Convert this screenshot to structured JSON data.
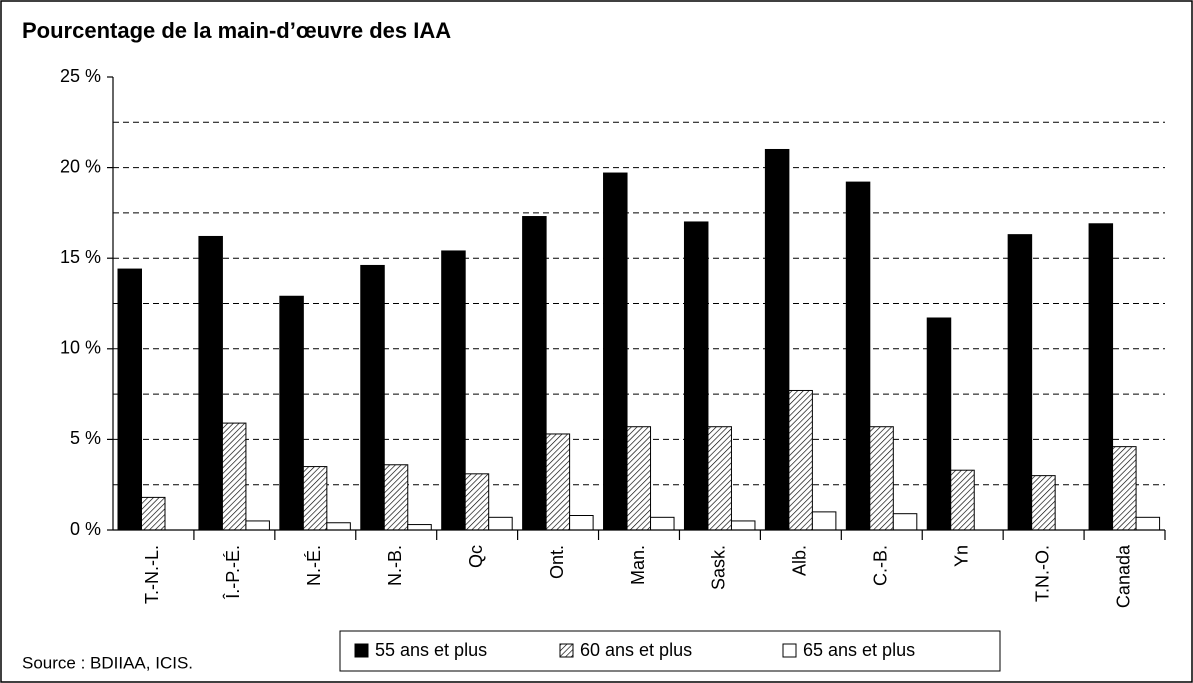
{
  "chart_data": {
    "type": "bar",
    "title": "Pourcentage de la main-d’œuvre des IAA",
    "source": "Source : BDIIAA, ICIS.",
    "categories": [
      "T.-N.-L.",
      "Î.-P.-É.",
      "N.-É.",
      "N.-B.",
      "Qc",
      "Ont.",
      "Man.",
      "Sask.",
      "Alb.",
      "C.-B.",
      "Yn",
      "T.N.-O.",
      "Canada"
    ],
    "series": [
      {
        "name": "55 ans et plus",
        "color": "#000000",
        "values": [
          14.4,
          16.2,
          12.9,
          14.6,
          15.4,
          17.3,
          19.7,
          17.0,
          21.0,
          19.2,
          11.7,
          16.3,
          16.9
        ]
      },
      {
        "name": "60 ans et plus",
        "color": "#ffffff",
        "hatch": true,
        "values": [
          1.8,
          5.9,
          3.5,
          3.6,
          3.1,
          5.3,
          5.7,
          5.7,
          7.7,
          5.7,
          3.3,
          3.0,
          4.6
        ]
      },
      {
        "name": "65 ans et plus",
        "color": "#ffffff",
        "values": [
          null,
          0.5,
          0.4,
          0.3,
          0.7,
          0.8,
          0.7,
          0.5,
          1.0,
          0.9,
          null,
          null,
          0.7
        ]
      }
    ],
    "ylim": [
      0,
      25
    ],
    "yticks": [
      {
        "value": 0,
        "label": "0 %"
      },
      {
        "value": 5,
        "label": "5 %"
      },
      {
        "value": 10,
        "label": "10 %"
      },
      {
        "value": 15,
        "label": "15 %"
      },
      {
        "value": 20,
        "label": "20 %"
      },
      {
        "value": 25,
        "label": "25 %"
      }
    ],
    "minor_yticks": [
      2.5,
      7.5,
      12.5,
      17.5,
      22.5
    ],
    "grid": true
  }
}
